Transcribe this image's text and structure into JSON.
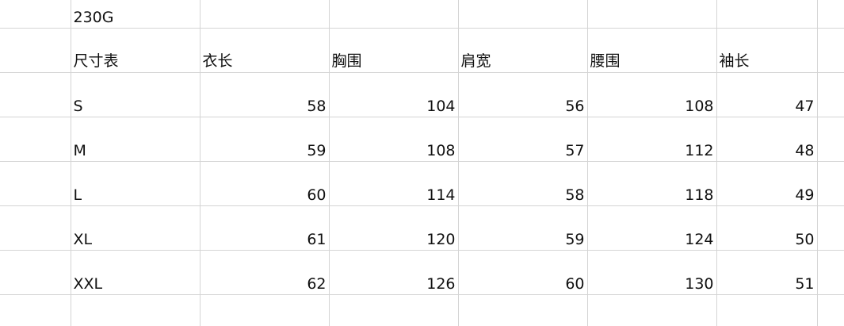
{
  "sheet": {
    "weight_label": "230G",
    "header": [
      "尺寸表",
      "衣长",
      "胸围",
      "肩宽",
      "腰围",
      "袖长"
    ],
    "rows": [
      [
        "S",
        "58",
        "104",
        "56",
        "108",
        "47"
      ],
      [
        "M",
        "59",
        "108",
        "57",
        "112",
        "48"
      ],
      [
        "L",
        "60",
        "114",
        "58",
        "118",
        "49"
      ],
      [
        "XL",
        "61",
        "120",
        "59",
        "124",
        "50"
      ],
      [
        "XXL",
        "62",
        "126",
        "60",
        "130",
        "51"
      ]
    ]
  },
  "colors": {
    "gridline": "#d4d4d4",
    "text": "#111111"
  }
}
